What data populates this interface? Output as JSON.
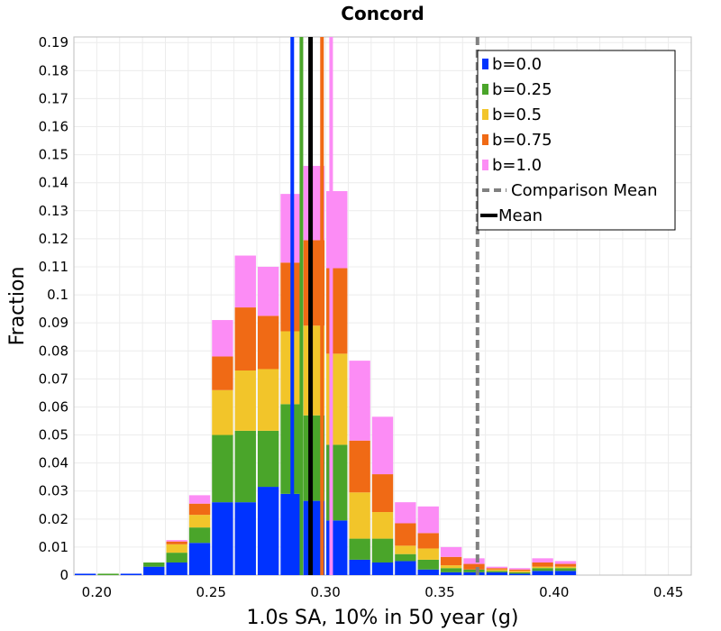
{
  "chart_data": {
    "type": "bar",
    "stacked": true,
    "title": "Concord",
    "xlabel": "1.0s SA, 10% in 50 year (g)",
    "ylabel": "Fraction",
    "xlim": [
      0.19,
      0.46
    ],
    "ylim": [
      0,
      0.192
    ],
    "bin_width": 0.01,
    "x_ticks": [
      "0.20",
      "0.25",
      "0.30",
      "0.35",
      "0.40",
      "0.45"
    ],
    "x_tick_values": [
      0.2,
      0.25,
      0.3,
      0.35,
      0.4,
      0.45
    ],
    "y_ticks": [
      "0",
      "0.01",
      "0.02",
      "0.03",
      "0.04",
      "0.05",
      "0.06",
      "0.07",
      "0.08",
      "0.09",
      "0.1",
      "0.11",
      "0.12",
      "0.13",
      "0.14",
      "0.15",
      "0.16",
      "0.17",
      "0.18",
      "0.19"
    ],
    "y_tick_values": [
      0,
      0.01,
      0.02,
      0.03,
      0.04,
      0.05,
      0.06,
      0.07,
      0.08,
      0.09,
      0.1,
      0.11,
      0.12,
      0.13,
      0.14,
      0.15,
      0.16,
      0.17,
      0.18,
      0.19
    ],
    "bins": [
      0.195,
      0.205,
      0.215,
      0.225,
      0.235,
      0.245,
      0.255,
      0.265,
      0.275,
      0.285,
      0.295,
      0.305,
      0.315,
      0.325,
      0.335,
      0.345,
      0.355,
      0.365,
      0.375,
      0.385,
      0.395,
      0.405
    ],
    "series": [
      {
        "name": "b=0.0",
        "color": "#0033ff",
        "values": [
          0.0005,
          0.0,
          0.0005,
          0.003,
          0.0045,
          0.0115,
          0.026,
          0.026,
          0.0315,
          0.029,
          0.0265,
          0.0195,
          0.0055,
          0.0045,
          0.005,
          0.002,
          0.001,
          0.001,
          0.001,
          0.0005,
          0.0015,
          0.0015
        ]
      },
      {
        "name": "b=0.25",
        "color": "#4aa52a",
        "values": [
          0.0,
          0.0005,
          0.0,
          0.0015,
          0.0035,
          0.0055,
          0.024,
          0.0255,
          0.02,
          0.032,
          0.0305,
          0.027,
          0.0075,
          0.0085,
          0.0025,
          0.0035,
          0.0015,
          0.001,
          0.0005,
          0.0005,
          0.001,
          0.001
        ]
      },
      {
        "name": "b=0.5",
        "color": "#f2c52a",
        "values": [
          0.0,
          0.0,
          0.0,
          0.0,
          0.003,
          0.0045,
          0.016,
          0.0215,
          0.022,
          0.026,
          0.032,
          0.0325,
          0.0165,
          0.0095,
          0.003,
          0.004,
          0.001,
          0.0,
          0.0005,
          0.0005,
          0.0005,
          0.0005
        ]
      },
      {
        "name": "b=0.75",
        "color": "#f06a15",
        "values": [
          0.0,
          0.0,
          0.0,
          0.0,
          0.001,
          0.004,
          0.012,
          0.0225,
          0.019,
          0.0245,
          0.0305,
          0.0305,
          0.0185,
          0.0135,
          0.008,
          0.0055,
          0.003,
          0.002,
          0.0005,
          0.0005,
          0.0015,
          0.001
        ]
      },
      {
        "name": "b=1.0",
        "color": "#fc8cf5",
        "values": [
          0.0,
          0.0,
          0.0,
          0.0,
          0.0005,
          0.003,
          0.013,
          0.0185,
          0.0175,
          0.0245,
          0.0265,
          0.0275,
          0.0285,
          0.0205,
          0.0075,
          0.0095,
          0.0035,
          0.002,
          0.0005,
          0.0005,
          0.0015,
          0.001
        ]
      }
    ],
    "mean_lines": [
      {
        "series": "b=0.0",
        "x": 0.2855,
        "color": "#0033ff"
      },
      {
        "series": "b=0.25",
        "x": 0.2895,
        "color": "#4aa52a"
      },
      {
        "series": "b=0.5",
        "x": 0.2935,
        "color": "#f2c52a"
      },
      {
        "series": "b=0.75",
        "x": 0.2985,
        "color": "#f06a15"
      },
      {
        "series": "b=1.0",
        "x": 0.3025,
        "color": "#fc8cf5"
      }
    ],
    "mean": {
      "label": "Mean",
      "x": 0.2935,
      "color": "#000000"
    },
    "comparison_mean": {
      "label": "Comparison Mean",
      "x": 0.3665,
      "color": "#808080"
    },
    "grid": true,
    "legend_position": "top-right"
  }
}
